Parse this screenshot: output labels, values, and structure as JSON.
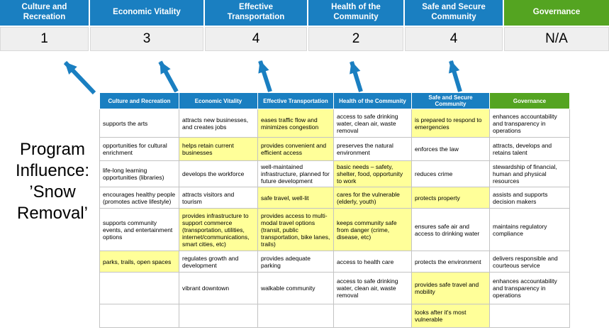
{
  "title": "Program Influence: ’Snow Removal’",
  "colors": {
    "blue": "#1a7fc1",
    "green": "#54a421",
    "highlight": "#ffff99",
    "score_bg": "#efefef"
  },
  "summary": {
    "columns": [
      {
        "label": "Culture and Recreation",
        "score": "1",
        "theme": "blue"
      },
      {
        "label": "Economic Vitality",
        "score": "3",
        "theme": "blue"
      },
      {
        "label": "Effective Transportation",
        "score": "4",
        "theme": "blue"
      },
      {
        "label": "Health of the Community",
        "score": "2",
        "theme": "blue"
      },
      {
        "label": "Safe and Secure Community",
        "score": "4",
        "theme": "blue"
      },
      {
        "label": "Governance",
        "score": "N/A",
        "theme": "green"
      }
    ]
  },
  "matrix": {
    "headers": [
      {
        "label": "Culture and Recreation",
        "theme": "blue"
      },
      {
        "label": "Economic Vitality",
        "theme": "blue"
      },
      {
        "label": "Effective Transportation",
        "theme": "blue"
      },
      {
        "label": "Health of the Community",
        "theme": "blue"
      },
      {
        "label": "Safe and Secure Community",
        "theme": "blue"
      },
      {
        "label": "Governance",
        "theme": "green"
      }
    ],
    "rows": [
      [
        {
          "text": "supports the arts",
          "highlight": false
        },
        {
          "text": "attracts new businesses, and creates jobs",
          "highlight": false
        },
        {
          "text": "eases traffic flow and minimizes congestion",
          "highlight": true
        },
        {
          "text": "access to safe drinking water, clean air, waste removal",
          "highlight": false
        },
        {
          "text": "is prepared to respond to emergencies",
          "highlight": true
        },
        {
          "text": "enhances accountability and transparency in operations",
          "highlight": false
        }
      ],
      [
        {
          "text": "opportunities for cultural enrichment",
          "highlight": false
        },
        {
          "text": "helps retain current businesses",
          "highlight": true
        },
        {
          "text": "provides convenient and efficient access",
          "highlight": true
        },
        {
          "text": "preserves the natural environment",
          "highlight": false
        },
        {
          "text": "enforces the law",
          "highlight": false
        },
        {
          "text": "attracts, develops and retains talent",
          "highlight": false
        }
      ],
      [
        {
          "text": "life-long learning opportunities (libraries)",
          "highlight": false
        },
        {
          "text": "develops the workforce",
          "highlight": false
        },
        {
          "text": "well-maintained infrastructure, planned for future development",
          "highlight": false
        },
        {
          "text": "basic needs – safety, shelter, food, opportunity to work",
          "highlight": true
        },
        {
          "text": "reduces crime",
          "highlight": false
        },
        {
          "text": "stewardship of financial, human and physical resources",
          "highlight": false
        }
      ],
      [
        {
          "text": "encourages healthy people (promotes active lifestyle)",
          "highlight": false
        },
        {
          "text": "attracts visitors and tourism",
          "highlight": false
        },
        {
          "text": "safe travel, well-lit",
          "highlight": true
        },
        {
          "text": "cares for the vulnerable (elderly, youth)",
          "highlight": true
        },
        {
          "text": "protects property",
          "highlight": true
        },
        {
          "text": "assists and supports decision makers",
          "highlight": false
        }
      ],
      [
        {
          "text": "supports community events, and entertainment options",
          "highlight": false
        },
        {
          "text": "provides infrastructure to support commerce (transportation, utilities, internet/communications, smart cities, etc)",
          "highlight": true
        },
        {
          "text": "provides access to multi-modal travel options (transit, public transportation, bike lanes, trails)",
          "highlight": true
        },
        {
          "text": "keeps community safe from danger (crime, disease, etc)",
          "highlight": true
        },
        {
          "text": "ensures safe air and access to drinking water",
          "highlight": false
        },
        {
          "text": "maintains regulatory compliance",
          "highlight": false
        }
      ],
      [
        {
          "text": "parks, trails, open spaces",
          "highlight": true
        },
        {
          "text": "regulates growth and development",
          "highlight": false
        },
        {
          "text": "provides adequate parking",
          "highlight": false
        },
        {
          "text": "access to health care",
          "highlight": false
        },
        {
          "text": "protects the environment",
          "highlight": false
        },
        {
          "text": "delivers responsible and courteous service",
          "highlight": false
        }
      ],
      [
        {
          "text": "",
          "highlight": false
        },
        {
          "text": "vibrant downtown",
          "highlight": false
        },
        {
          "text": "walkable community",
          "highlight": false
        },
        {
          "text": "access to safe drinking water, clean air, waste removal",
          "highlight": false
        },
        {
          "text": "provides safe travel and mobility",
          "highlight": true
        },
        {
          "text": "enhances accountability and transparency in operations",
          "highlight": false
        }
      ],
      [
        {
          "text": "",
          "highlight": false
        },
        {
          "text": "",
          "highlight": false
        },
        {
          "text": "",
          "highlight": false
        },
        {
          "text": "",
          "highlight": false
        },
        {
          "text": "looks after it's most vulnerable",
          "highlight": true
        },
        {
          "text": "",
          "highlight": false
        }
      ]
    ]
  }
}
